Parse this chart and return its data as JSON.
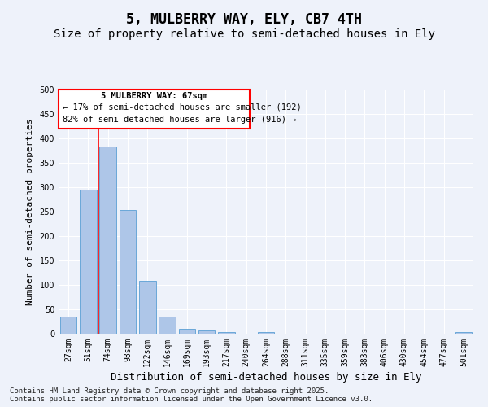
{
  "title": "5, MULBERRY WAY, ELY, CB7 4TH",
  "subtitle": "Size of property relative to semi-detached houses in Ely",
  "xlabel": "Distribution of semi-detached houses by size in Ely",
  "ylabel": "Number of semi-detached properties",
  "categories": [
    "27sqm",
    "51sqm",
    "74sqm",
    "98sqm",
    "122sqm",
    "146sqm",
    "169sqm",
    "193sqm",
    "217sqm",
    "240sqm",
    "264sqm",
    "288sqm",
    "311sqm",
    "335sqm",
    "359sqm",
    "383sqm",
    "406sqm",
    "430sqm",
    "454sqm",
    "477sqm",
    "501sqm"
  ],
  "values": [
    35,
    295,
    383,
    254,
    108,
    35,
    10,
    6,
    4,
    0,
    4,
    0,
    0,
    0,
    0,
    0,
    0,
    0,
    0,
    0,
    4
  ],
  "bar_color": "#aec6e8",
  "bar_edge_color": "#5a9fd4",
  "vline_x": 1.5,
  "vline_color": "red",
  "ylim": [
    0,
    500
  ],
  "yticks": [
    0,
    50,
    100,
    150,
    200,
    250,
    300,
    350,
    400,
    450,
    500
  ],
  "annotation_title": "5 MULBERRY WAY: 67sqm",
  "annotation_line1": "← 17% of semi-detached houses are smaller (192)",
  "annotation_line2": "82% of semi-detached houses are larger (916) →",
  "annotation_box_color": "red",
  "footer_line1": "Contains HM Land Registry data © Crown copyright and database right 2025.",
  "footer_line2": "Contains public sector information licensed under the Open Government Licence v3.0.",
  "bg_color": "#eef2fa",
  "plot_bg_color": "#eef2fa",
  "title_fontsize": 12,
  "subtitle_fontsize": 10,
  "tick_fontsize": 7,
  "ylabel_fontsize": 8,
  "xlabel_fontsize": 9,
  "footer_fontsize": 6.5,
  "ann_fontsize": 7.5
}
